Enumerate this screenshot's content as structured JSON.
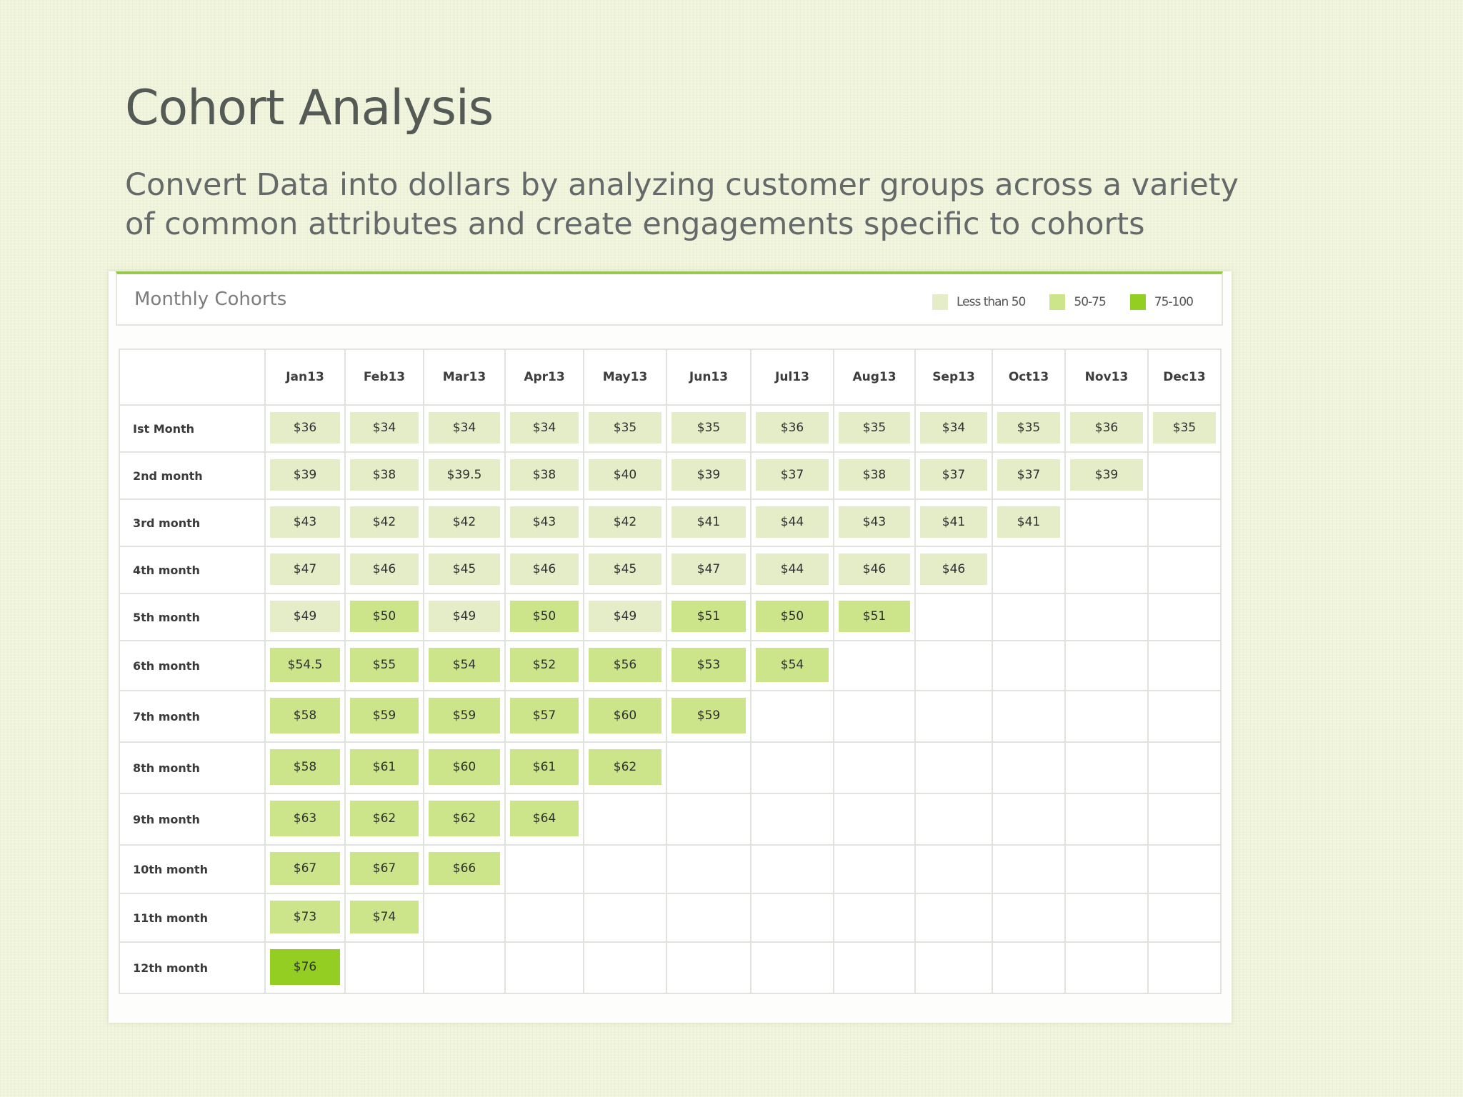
{
  "title": "Cohort Analysis",
  "subtitle": "Convert Data into dollars by analyzing customer groups across a variety of common attributes and create engagements specific to cohorts",
  "panel_title": "Monthly Cohorts",
  "legend": [
    {
      "label": "Less than 50",
      "color": "#e4edc8"
    },
    {
      "label": "50-75",
      "color": "#cce48a"
    },
    {
      "label": "75-100",
      "color": "#94ce22"
    }
  ],
  "chart_data": {
    "type": "heatmap",
    "title": "Monthly Cohorts",
    "columns": [
      "Jan13",
      "Feb13",
      "Mar13",
      "Apr13",
      "May13",
      "Jun13",
      "Jul13",
      "Aug13",
      "Sep13",
      "Oct13",
      "Nov13",
      "Dec13"
    ],
    "rows": [
      {
        "label": "Ist Month",
        "values": [
          "$36",
          "$34",
          "$34",
          "$34",
          "$35",
          "$35",
          "$36",
          "$35",
          "$34",
          "$35",
          "$36",
          "$35"
        ]
      },
      {
        "label": "2nd month",
        "values": [
          "$39",
          "$38",
          "$39.5",
          "$38",
          "$40",
          "$39",
          "$37",
          "$38",
          "$37",
          "$37",
          "$39"
        ]
      },
      {
        "label": "3rd month",
        "values": [
          "$43",
          "$42",
          "$42",
          "$43",
          "$42",
          "$41",
          "$44",
          "$43",
          "$41",
          "$41"
        ]
      },
      {
        "label": "4th month",
        "values": [
          "$47",
          "$46",
          "$45",
          "$46",
          "$45",
          "$47",
          "$44",
          "$46",
          "$46"
        ]
      },
      {
        "label": "5th month",
        "values": [
          "$49",
          "$50",
          "$49",
          "$50",
          "$49",
          "$51",
          "$50",
          "$51"
        ]
      },
      {
        "label": "6th month",
        "values": [
          "$54.5",
          "$55",
          "$54",
          "$52",
          "$56",
          "$53",
          "$54"
        ]
      },
      {
        "label": "7th month",
        "values": [
          "$58",
          "$59",
          "$59",
          "$57",
          "$60",
          "$59"
        ]
      },
      {
        "label": "8th month",
        "values": [
          "$58",
          "$61",
          "$60",
          "$61",
          "$62"
        ]
      },
      {
        "label": "9th month",
        "values": [
          "$63",
          "$62",
          "$62",
          "$64"
        ]
      },
      {
        "label": "10th month",
        "values": [
          "$67",
          "$67",
          "$66"
        ]
      },
      {
        "label": "11th month",
        "values": [
          "$73",
          "$74"
        ]
      },
      {
        "label": "12th month",
        "values": [
          "$76"
        ]
      }
    ],
    "bins": [
      {
        "label": "Less than 50",
        "min": 0,
        "max": 50,
        "color": "#e4edc8"
      },
      {
        "label": "50-75",
        "min": 50,
        "max": 75,
        "color": "#cce48a"
      },
      {
        "label": "75-100",
        "min": 75,
        "max": 100,
        "color": "#94ce22"
      }
    ]
  }
}
